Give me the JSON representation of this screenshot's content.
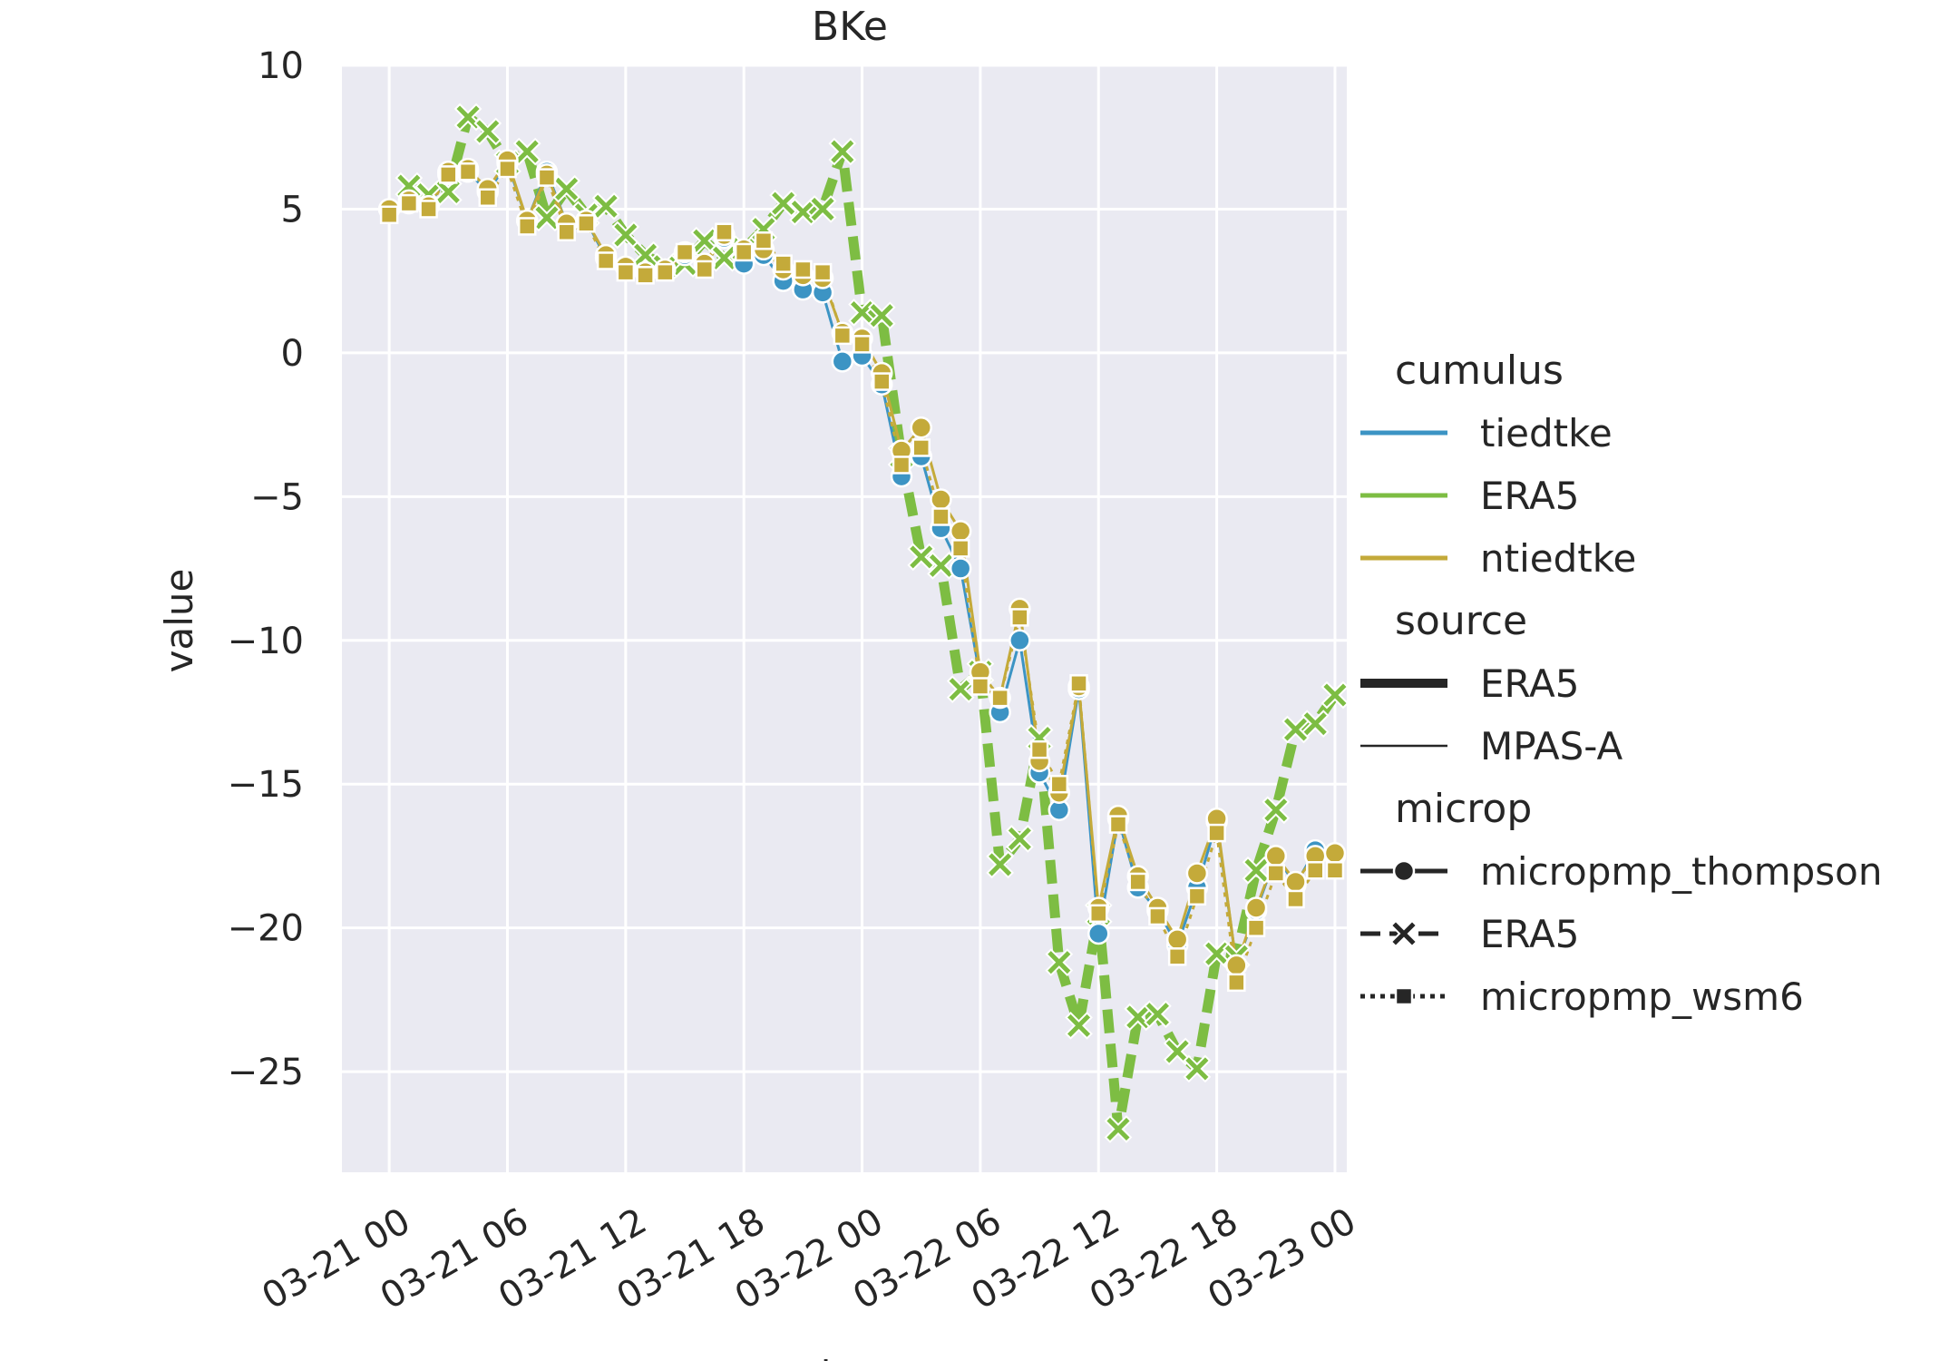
{
  "chart_data": {
    "type": "line",
    "title": "BKe",
    "xlabel": "date",
    "ylabel": "value",
    "ylim": [
      -28.5,
      10
    ],
    "xlim": [
      "2015-03-20 21:36",
      "2015-03-23 00:36"
    ],
    "yticks": [
      10,
      5,
      0,
      -5,
      -10,
      -15,
      -20,
      -25
    ],
    "ytick_labels": [
      "10",
      "5",
      "0",
      "−5",
      "−10",
      "−15",
      "−20",
      "−25"
    ],
    "xticks": [
      "2015-03-21 00:00",
      "2015-03-21 06:00",
      "2015-03-21 12:00",
      "2015-03-21 18:00",
      "2015-03-22 00:00",
      "2015-03-22 06:00",
      "2015-03-22 12:00",
      "2015-03-22 18:00",
      "2015-03-23 00:00"
    ],
    "xtick_labels": [
      "03-21 00",
      "03-21 06",
      "03-21 12",
      "03-21 18",
      "03-22 00",
      "03-22 06",
      "03-22 12",
      "03-22 18",
      "03-23 00"
    ],
    "grid": true,
    "background": "#eaeaf2",
    "colors": {
      "tiedtke": "#3c94c4",
      "ERA5": "#7dbd43",
      "ntiedtke": "#c4aa3a"
    },
    "legend": {
      "placement": "right",
      "sections": [
        {
          "title": "cumulus",
          "entries": [
            {
              "label": "tiedtke",
              "kind": "color",
              "color": "#3c94c4"
            },
            {
              "label": "ERA5",
              "kind": "color",
              "color": "#7dbd43"
            },
            {
              "label": "ntiedtke",
              "kind": "color",
              "color": "#c4aa3a"
            }
          ]
        },
        {
          "title": "source",
          "entries": [
            {
              "label": "ERA5",
              "kind": "width",
              "width": "thick"
            },
            {
              "label": "MPAS-A",
              "kind": "width",
              "width": "thin"
            }
          ]
        },
        {
          "title": "microp",
          "entries": [
            {
              "label": "micropmp_thompson",
              "kind": "style",
              "dash": "solid",
              "marker": "circle"
            },
            {
              "label": "ERA5",
              "kind": "style",
              "dash": "dashed",
              "marker": "x"
            },
            {
              "label": "micropmp_wsm6",
              "kind": "style",
              "dash": "dotted",
              "marker": "square"
            }
          ]
        }
      ]
    },
    "series": [
      {
        "cumulus": "ERA5",
        "source": "ERA5",
        "microp": "ERA5",
        "x": [
          "2015-03-21 01:00",
          "2015-03-21 02:00",
          "2015-03-21 03:00",
          "2015-03-21 04:00",
          "2015-03-21 05:00",
          "2015-03-21 06:00",
          "2015-03-21 07:00",
          "2015-03-21 08:00",
          "2015-03-21 09:00",
          "2015-03-21 10:00",
          "2015-03-21 11:00",
          "2015-03-21 12:00",
          "2015-03-21 13:00",
          "2015-03-21 14:00",
          "2015-03-21 15:00",
          "2015-03-21 16:00",
          "2015-03-21 17:00",
          "2015-03-21 18:00",
          "2015-03-21 19:00",
          "2015-03-21 20:00",
          "2015-03-21 21:00",
          "2015-03-21 22:00",
          "2015-03-21 23:00",
          "2015-03-22 00:00",
          "2015-03-22 01:00",
          "2015-03-22 02:00",
          "2015-03-22 03:00",
          "2015-03-22 04:00",
          "2015-03-22 05:00",
          "2015-03-22 06:00",
          "2015-03-22 07:00",
          "2015-03-22 08:00",
          "2015-03-22 09:00",
          "2015-03-22 10:00",
          "2015-03-22 11:00",
          "2015-03-22 12:00",
          "2015-03-22 13:00",
          "2015-03-22 14:00",
          "2015-03-22 15:00",
          "2015-03-22 16:00",
          "2015-03-22 17:00",
          "2015-03-22 18:00",
          "2015-03-22 19:00",
          "2015-03-22 20:00",
          "2015-03-22 21:00",
          "2015-03-22 22:00",
          "2015-03-22 23:00",
          "2015-03-23 00:00"
        ],
        "values": [
          5.8,
          5.5,
          5.6,
          8.2,
          7.7,
          6.6,
          7.0,
          4.7,
          5.7,
          4.8,
          5.1,
          4.1,
          3.4,
          3.0,
          3.1,
          3.9,
          3.3,
          3.6,
          4.3,
          5.2,
          4.9,
          5.0,
          7.0,
          1.4,
          1.3,
          -3.6,
          -7.1,
          -7.4,
          -11.7,
          -11.1,
          -17.8,
          -16.9,
          -13.4,
          -21.2,
          -23.4,
          -19.5,
          -27.0,
          -23.1,
          -23.0,
          -24.3,
          -24.9,
          -20.9,
          -21.0,
          -18.0,
          -15.9,
          -13.1,
          -12.9,
          -11.9
        ]
      },
      {
        "cumulus": "tiedtke",
        "source": "MPAS-A",
        "microp": "micropmp_thompson",
        "x": [
          "2015-03-21 00:00",
          "2015-03-21 01:00",
          "2015-03-21 02:00",
          "2015-03-21 03:00",
          "2015-03-21 04:00",
          "2015-03-21 05:00",
          "2015-03-21 06:00",
          "2015-03-21 07:00",
          "2015-03-21 08:00",
          "2015-03-21 09:00",
          "2015-03-21 10:00",
          "2015-03-21 11:00",
          "2015-03-21 12:00",
          "2015-03-21 13:00",
          "2015-03-21 14:00",
          "2015-03-21 15:00",
          "2015-03-21 16:00",
          "2015-03-21 17:00",
          "2015-03-21 18:00",
          "2015-03-21 19:00",
          "2015-03-21 20:00",
          "2015-03-21 21:00",
          "2015-03-21 22:00",
          "2015-03-21 23:00",
          "2015-03-22 00:00",
          "2015-03-22 01:00",
          "2015-03-22 02:00",
          "2015-03-22 03:00",
          "2015-03-22 04:00",
          "2015-03-22 05:00",
          "2015-03-22 06:00",
          "2015-03-22 07:00",
          "2015-03-22 08:00",
          "2015-03-22 09:00",
          "2015-03-22 10:00",
          "2015-03-22 11:00",
          "2015-03-22 12:00",
          "2015-03-22 13:00",
          "2015-03-22 14:00",
          "2015-03-22 15:00",
          "2015-03-22 16:00",
          "2015-03-22 17:00",
          "2015-03-22 18:00",
          "2015-03-22 19:00",
          "2015-03-22 20:00",
          "2015-03-22 21:00",
          "2015-03-22 22:00",
          "2015-03-22 23:00",
          "2015-03-23 00:00"
        ],
        "values": [
          5.0,
          5.2,
          5.1,
          6.2,
          6.3,
          5.6,
          6.6,
          4.6,
          6.3,
          4.5,
          4.6,
          3.3,
          3.0,
          2.8,
          2.9,
          3.4,
          3.1,
          4.0,
          3.1,
          3.4,
          2.5,
          2.2,
          2.1,
          -0.3,
          -0.1,
          -1.1,
          -4.3,
          -3.6,
          -6.1,
          -7.5,
          -11.3,
          -12.5,
          -10.0,
          -14.6,
          -15.9,
          -11.7,
          -20.2,
          -16.2,
          -18.6,
          -19.4,
          -20.6,
          -18.6,
          -16.3,
          -21.3,
          -19.4,
          -17.5,
          -18.5,
          -17.3,
          -17.5
        ]
      },
      {
        "cumulus": "ntiedtke",
        "source": "MPAS-A",
        "microp": "micropmp_thompson",
        "x": [
          "2015-03-21 00:00",
          "2015-03-21 01:00",
          "2015-03-21 02:00",
          "2015-03-21 03:00",
          "2015-03-21 04:00",
          "2015-03-21 05:00",
          "2015-03-21 06:00",
          "2015-03-21 07:00",
          "2015-03-21 08:00",
          "2015-03-21 09:00",
          "2015-03-21 10:00",
          "2015-03-21 11:00",
          "2015-03-21 12:00",
          "2015-03-21 13:00",
          "2015-03-21 14:00",
          "2015-03-21 15:00",
          "2015-03-21 16:00",
          "2015-03-21 17:00",
          "2015-03-21 18:00",
          "2015-03-21 19:00",
          "2015-03-21 20:00",
          "2015-03-21 21:00",
          "2015-03-21 22:00",
          "2015-03-21 23:00",
          "2015-03-22 00:00",
          "2015-03-22 01:00",
          "2015-03-22 02:00",
          "2015-03-22 03:00",
          "2015-03-22 04:00",
          "2015-03-22 05:00",
          "2015-03-22 06:00",
          "2015-03-22 07:00",
          "2015-03-22 08:00",
          "2015-03-22 09:00",
          "2015-03-22 10:00",
          "2015-03-22 11:00",
          "2015-03-22 12:00",
          "2015-03-22 13:00",
          "2015-03-22 14:00",
          "2015-03-22 15:00",
          "2015-03-22 16:00",
          "2015-03-22 17:00",
          "2015-03-22 18:00",
          "2015-03-22 19:00",
          "2015-03-22 20:00",
          "2015-03-22 21:00",
          "2015-03-22 22:00",
          "2015-03-22 23:00",
          "2015-03-23 00:00"
        ],
        "values": [
          5.0,
          5.3,
          5.1,
          6.3,
          6.4,
          5.7,
          6.7,
          4.6,
          6.2,
          4.5,
          4.6,
          3.4,
          3.0,
          2.8,
          2.9,
          3.5,
          3.1,
          4.1,
          3.6,
          3.6,
          2.9,
          2.7,
          2.6,
          0.7,
          0.5,
          -0.7,
          -3.4,
          -2.6,
          -5.1,
          -6.2,
          -11.1,
          -12.0,
          -8.9,
          -14.2,
          -15.3,
          -11.6,
          -19.3,
          -16.1,
          -18.2,
          -19.3,
          -20.4,
          -18.1,
          -16.2,
          -21.3,
          -19.3,
          -17.5,
          -18.4,
          -17.5,
          -17.4
        ]
      },
      {
        "cumulus": "ntiedtke",
        "source": "MPAS-A",
        "microp": "micropmp_wsm6",
        "x": [
          "2015-03-21 00:00",
          "2015-03-21 01:00",
          "2015-03-21 02:00",
          "2015-03-21 03:00",
          "2015-03-21 04:00",
          "2015-03-21 05:00",
          "2015-03-21 06:00",
          "2015-03-21 07:00",
          "2015-03-21 08:00",
          "2015-03-21 09:00",
          "2015-03-21 10:00",
          "2015-03-21 11:00",
          "2015-03-21 12:00",
          "2015-03-21 13:00",
          "2015-03-21 14:00",
          "2015-03-21 15:00",
          "2015-03-21 16:00",
          "2015-03-21 17:00",
          "2015-03-21 18:00",
          "2015-03-21 19:00",
          "2015-03-21 20:00",
          "2015-03-21 21:00",
          "2015-03-21 22:00",
          "2015-03-21 23:00",
          "2015-03-22 00:00",
          "2015-03-22 01:00",
          "2015-03-22 02:00",
          "2015-03-22 03:00",
          "2015-03-22 04:00",
          "2015-03-22 05:00",
          "2015-03-22 06:00",
          "2015-03-22 07:00",
          "2015-03-22 08:00",
          "2015-03-22 09:00",
          "2015-03-22 10:00",
          "2015-03-22 11:00",
          "2015-03-22 12:00",
          "2015-03-22 13:00",
          "2015-03-22 14:00",
          "2015-03-22 15:00",
          "2015-03-22 16:00",
          "2015-03-22 17:00",
          "2015-03-22 18:00",
          "2015-03-22 19:00",
          "2015-03-22 20:00",
          "2015-03-22 21:00",
          "2015-03-22 22:00",
          "2015-03-22 23:00",
          "2015-03-23 00:00"
        ],
        "values": [
          4.8,
          5.2,
          5.0,
          6.2,
          6.3,
          5.4,
          6.4,
          4.4,
          6.1,
          4.2,
          4.5,
          3.2,
          2.8,
          2.7,
          2.8,
          3.5,
          2.9,
          4.2,
          3.5,
          3.9,
          3.1,
          2.9,
          2.8,
          0.6,
          0.3,
          -1.0,
          -3.9,
          -3.3,
          -5.7,
          -6.8,
          -11.6,
          -12.0,
          -9.2,
          -13.8,
          -15.0,
          -11.5,
          -19.5,
          -16.4,
          -18.4,
          -19.6,
          -21.0,
          -18.9,
          -16.7,
          -21.9,
          -20.0,
          -18.1,
          -19.0,
          -18.0,
          -18.0
        ]
      }
    ]
  }
}
